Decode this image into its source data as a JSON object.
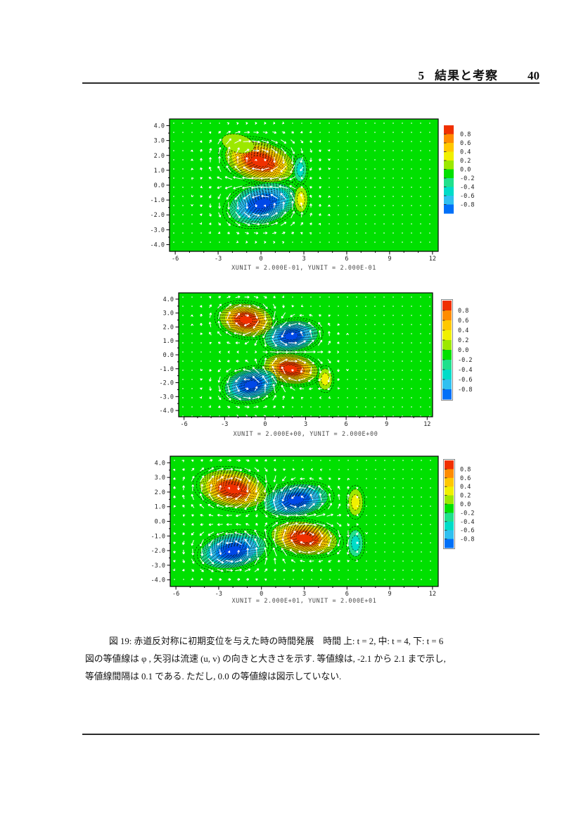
{
  "page": {
    "header": {
      "section_number": "5",
      "section_title": "結果と考察",
      "page_number": "40"
    },
    "figure_caption": {
      "line1": "図 19: 赤道反対称に初期変位を与えた時の時間発展　時間 上: t = 2, 中: t = 4, 下: t = 6",
      "line2": "図の等値線は φ , 矢羽は流速 (u, v) の向きと大きさを示す. 等値線は, -2.1 から 2.1 まで示し,",
      "line3": "等値線間隔は 0.1 である. ただし, 0.0 の等値線は図示していない."
    }
  },
  "plot_colors": {
    "background_green": "#00e000",
    "contour_line": "#000000",
    "arrow": "#ffffff",
    "frame": "#000000",
    "colorbar_box": "#888888",
    "positive_palette": [
      "#9ce800",
      "#f0f000",
      "#ffc800",
      "#ff8c00",
      "#ff4600",
      "#f03000"
    ],
    "negative_palette": [
      "#20e08c",
      "#00dcc8",
      "#30c0f0",
      "#0098f8",
      "#0064f8",
      "#0048e8"
    ]
  },
  "chart_data": [
    {
      "type": "heatmap",
      "subtype": "filled-contour with vector field",
      "time_label": "上: t = 2",
      "x_range": [
        -6,
        12
      ],
      "y_range": [
        -4,
        4
      ],
      "x_ticks": [
        "-6",
        "-3",
        "0",
        "3",
        "6",
        "9",
        "12"
      ],
      "y_ticks": [
        "4.0",
        "3.0",
        "2.0",
        "1.0",
        "0.0",
        "-1.0",
        "-2.0",
        "-3.0",
        "-4.0"
      ],
      "subcaption": "XUNIT = 2.000E-01, YUNIT = 2.000E-01",
      "contour": {
        "variable": "φ",
        "min": -2.1,
        "max": 2.1,
        "interval": 0.1,
        "zero_line_omitted": true
      },
      "colorbar": {
        "boxed": false,
        "labels": [
          "0.8",
          "0.6",
          "0.4",
          "0.2",
          "0.0",
          "-0.2",
          "-0.4",
          "-0.6",
          "-0.8"
        ],
        "colors": [
          "#f03000",
          "#ff8c00",
          "#ffc800",
          "#f0f000",
          "#9ce800",
          "#00e000",
          "#20e08c",
          "#00dcc8",
          "#30c0f0",
          "#0070f8"
        ]
      },
      "extrema": [
        {
          "x": -0.1,
          "y": 1.6,
          "peak": 0.9,
          "sign": 1,
          "rx": 2.45,
          "ry": 1.3,
          "rot": 15,
          "rings": 9
        },
        {
          "x": -1.6,
          "y": 2.8,
          "peak": 0.2,
          "sign": 1,
          "rx": 1.15,
          "ry": 0.6,
          "rot": 15,
          "rings": 1
        },
        {
          "x": 0.1,
          "y": -1.25,
          "peak": -0.9,
          "sign": -1,
          "rx": 2.35,
          "ry": 1.3,
          "rot": -15,
          "rings": 9
        },
        {
          "x": 2.75,
          "y": 1.05,
          "peak": -0.3,
          "sign": -1,
          "rx": 0.42,
          "ry": 0.8,
          "rot": 0,
          "rings": 2
        },
        {
          "x": 2.8,
          "y": -0.95,
          "peak": 0.3,
          "sign": 1,
          "rx": 0.45,
          "ry": 0.85,
          "rot": 0,
          "rings": 2
        }
      ]
    },
    {
      "type": "heatmap",
      "subtype": "filled-contour with vector field",
      "time_label": "中: t = 4",
      "x_range": [
        -6,
        12
      ],
      "y_range": [
        -4,
        4
      ],
      "x_ticks": [
        "-6",
        "-3",
        "0",
        "3",
        "6",
        "9",
        "12"
      ],
      "y_ticks": [
        "4.0",
        "3.0",
        "2.0",
        "1.0",
        "0.0",
        "-1.0",
        "-2.0",
        "-3.0",
        "-4.0"
      ],
      "subcaption": "XUNIT = 2.000E+00, YUNIT = 2.000E+00",
      "contour": {
        "variable": "φ",
        "min": -2.1,
        "max": 2.1,
        "interval": 0.1,
        "zero_line_omitted": true
      },
      "colorbar": {
        "boxed": true,
        "labels": [
          "0.8",
          "0.6",
          "0.4",
          "0.2",
          "0.0",
          "-0.2",
          "-0.4",
          "-0.6",
          "-0.8"
        ],
        "colors": [
          "#f03000",
          "#ff8c00",
          "#ffc800",
          "#f0f000",
          "#9ce800",
          "#00e000",
          "#20e08c",
          "#00dcc8",
          "#30c0f0",
          "#0070f8"
        ]
      },
      "extrema": [
        {
          "x": -1.4,
          "y": 2.5,
          "peak": 0.9,
          "sign": 1,
          "rx": 1.95,
          "ry": 1.15,
          "rot": 8,
          "rings": 9
        },
        {
          "x": 1.95,
          "y": 1.35,
          "peak": -0.9,
          "sign": -1,
          "rx": 1.95,
          "ry": 1.05,
          "rot": -8,
          "rings": 9
        },
        {
          "x": 1.9,
          "y": -1.0,
          "peak": 0.9,
          "sign": 1,
          "rx": 2.0,
          "ry": 1.05,
          "rot": 8,
          "rings": 9
        },
        {
          "x": -1.05,
          "y": -2.15,
          "peak": -0.9,
          "sign": -1,
          "rx": 1.95,
          "ry": 1.1,
          "rot": -12,
          "rings": 9
        },
        {
          "x": 4.45,
          "y": -1.75,
          "peak": 0.3,
          "sign": 1,
          "rx": 0.5,
          "ry": 0.75,
          "rot": 0,
          "rings": 2
        }
      ]
    },
    {
      "type": "heatmap",
      "subtype": "filled-contour with vector field",
      "time_label": "下: t = 6",
      "x_range": [
        -6,
        12
      ],
      "y_range": [
        -4,
        4
      ],
      "x_ticks": [
        "-6",
        "-3",
        "0",
        "3",
        "6",
        "9",
        "12"
      ],
      "y_ticks": [
        "4.0",
        "3.0",
        "2.0",
        "1.0",
        "0.0",
        "-1.0",
        "-2.0",
        "-3.0",
        "-4.0"
      ],
      "subcaption": "XUNIT = 2.000E+01, YUNIT = 2.000E+01",
      "contour": {
        "variable": "φ",
        "min": -2.1,
        "max": 2.1,
        "interval": 0.1,
        "zero_line_omitted": true
      },
      "colorbar": {
        "boxed": true,
        "labels": [
          "0.8",
          "0.6",
          "0.4",
          "0.2",
          "0.0",
          "-0.2",
          "-0.4",
          "-0.6",
          "-0.8"
        ],
        "colors": [
          "#f03000",
          "#ff8c00",
          "#ffc800",
          "#f0f000",
          "#9ce800",
          "#00e000",
          "#20e08c",
          "#00dcc8",
          "#30c0f0",
          "#0070f8"
        ]
      },
      "extrema": [
        {
          "x": -2.0,
          "y": 2.2,
          "peak": 0.9,
          "sign": 1,
          "rx": 2.35,
          "ry": 1.25,
          "rot": 10,
          "rings": 9
        },
        {
          "x": 2.4,
          "y": 1.45,
          "peak": -0.9,
          "sign": -1,
          "rx": 2.25,
          "ry": 1.05,
          "rot": -8,
          "rings": 9
        },
        {
          "x": 3.0,
          "y": -1.15,
          "peak": 0.9,
          "sign": 1,
          "rx": 2.3,
          "ry": 1.1,
          "rot": 8,
          "rings": 9
        },
        {
          "x": -2.0,
          "y": -2.0,
          "peak": -0.9,
          "sign": -1,
          "rx": 2.3,
          "ry": 1.15,
          "rot": -10,
          "rings": 9
        },
        {
          "x": 6.6,
          "y": 1.3,
          "peak": 0.3,
          "sign": 1,
          "rx": 0.5,
          "ry": 0.9,
          "rot": 0,
          "rings": 2
        },
        {
          "x": 6.6,
          "y": -1.5,
          "peak": -0.3,
          "sign": -1,
          "rx": 0.5,
          "ry": 0.9,
          "rot": 0,
          "rings": 2
        }
      ]
    }
  ]
}
